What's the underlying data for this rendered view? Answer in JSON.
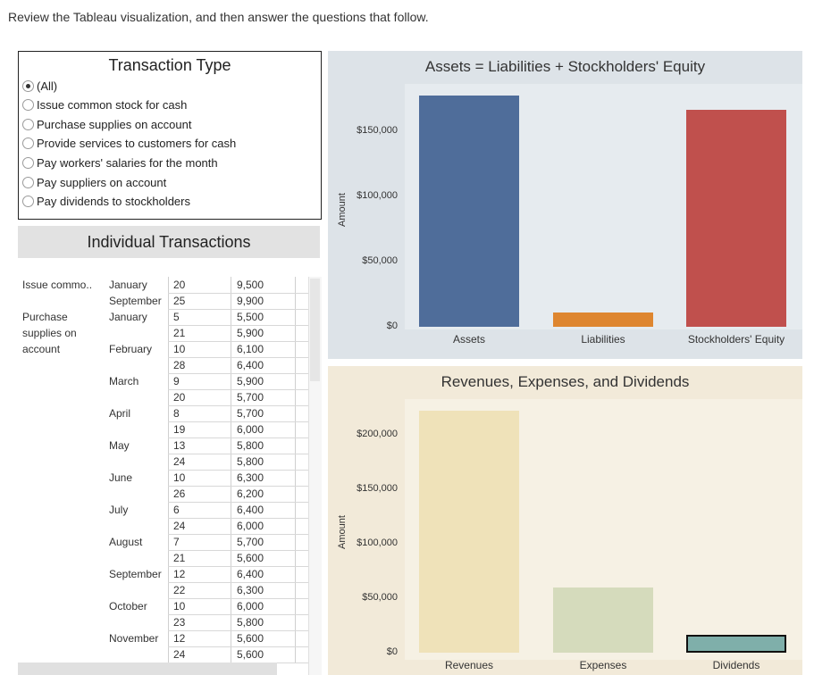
{
  "instructions": "Review the Tableau visualization, and then answer the questions that follow.",
  "filter": {
    "title": "Transaction Type",
    "options": [
      {
        "label": "(All)",
        "selected": true
      },
      {
        "label": "Issue common stock for cash",
        "selected": false
      },
      {
        "label": "Purchase supplies on account",
        "selected": false
      },
      {
        "label": "Provide services to customers for cash",
        "selected": false
      },
      {
        "label": "Pay workers' salaries for the month",
        "selected": false
      },
      {
        "label": "Pay suppliers on account",
        "selected": false
      },
      {
        "label": "Pay dividends to stockholders",
        "selected": false
      }
    ]
  },
  "transactions": {
    "title": "Individual Transactions",
    "rows": [
      {
        "type": "Issue commo..",
        "month": "January",
        "day": "20",
        "amount": "9,500"
      },
      {
        "type": "",
        "month": "September",
        "day": "25",
        "amount": "9,900"
      },
      {
        "type": "Purchase",
        "month": "January",
        "day": "5",
        "amount": "5,500"
      },
      {
        "type": "supplies on",
        "month": "",
        "day": "21",
        "amount": "5,900"
      },
      {
        "type": "account",
        "month": "February",
        "day": "10",
        "amount": "6,100"
      },
      {
        "type": "",
        "month": "",
        "day": "28",
        "amount": "6,400"
      },
      {
        "type": "",
        "month": "March",
        "day": "9",
        "amount": "5,900"
      },
      {
        "type": "",
        "month": "",
        "day": "20",
        "amount": "5,700"
      },
      {
        "type": "",
        "month": "April",
        "day": "8",
        "amount": "5,700"
      },
      {
        "type": "",
        "month": "",
        "day": "19",
        "amount": "6,000"
      },
      {
        "type": "",
        "month": "May",
        "day": "13",
        "amount": "5,800"
      },
      {
        "type": "",
        "month": "",
        "day": "24",
        "amount": "5,800"
      },
      {
        "type": "",
        "month": "June",
        "day": "10",
        "amount": "6,300"
      },
      {
        "type": "",
        "month": "",
        "day": "26",
        "amount": "6,200"
      },
      {
        "type": "",
        "month": "July",
        "day": "6",
        "amount": "6,400"
      },
      {
        "type": "",
        "month": "",
        "day": "24",
        "amount": "6,000"
      },
      {
        "type": "",
        "month": "August",
        "day": "7",
        "amount": "5,700"
      },
      {
        "type": "",
        "month": "",
        "day": "21",
        "amount": "5,600"
      },
      {
        "type": "",
        "month": "September",
        "day": "12",
        "amount": "6,400"
      },
      {
        "type": "",
        "month": "",
        "day": "22",
        "amount": "6,300"
      },
      {
        "type": "",
        "month": "October",
        "day": "10",
        "amount": "6,000"
      },
      {
        "type": "",
        "month": "",
        "day": "23",
        "amount": "5,800"
      },
      {
        "type": "",
        "month": "November",
        "day": "12",
        "amount": "5,600"
      },
      {
        "type": "",
        "month": "",
        "day": "24",
        "amount": "5,600"
      }
    ]
  },
  "chart_data": [
    {
      "type": "bar",
      "title": "Assets = Liabilities + Stockholders' Equity",
      "ylabel": "Amount",
      "categories": [
        "Assets",
        "Liabilities",
        "Stockholders' Equity"
      ],
      "values": [
        177000,
        11000,
        166000
      ],
      "ylim": [
        0,
        177000
      ],
      "yticks": [
        {
          "value": 0,
          "label": "$0"
        },
        {
          "value": 50000,
          "label": "$50,000"
        },
        {
          "value": 100000,
          "label": "$100,000"
        },
        {
          "value": 150000,
          "label": "$150,000"
        }
      ],
      "colors": [
        "#4f6d9a",
        "#de8630",
        "#c0504d"
      ],
      "background": "#e6ebef"
    },
    {
      "type": "bar",
      "title": "Revenues, Expenses, and Dividends",
      "ylabel": "Amount",
      "categories": [
        "Revenues",
        "Expenses",
        "Dividends"
      ],
      "values": [
        222000,
        60000,
        16000
      ],
      "ylim": [
        0,
        222000
      ],
      "yticks": [
        {
          "value": 0,
          "label": "$0"
        },
        {
          "value": 50000,
          "label": "$50,000"
        },
        {
          "value": 100000,
          "label": "$100,000"
        },
        {
          "value": 150000,
          "label": "$150,000"
        },
        {
          "value": 200000,
          "label": "$200,000"
        }
      ],
      "colors": [
        "#efe2b9",
        "#d5dbbc",
        "#7fafaa"
      ],
      "background": "#f6f1e4"
    }
  ]
}
